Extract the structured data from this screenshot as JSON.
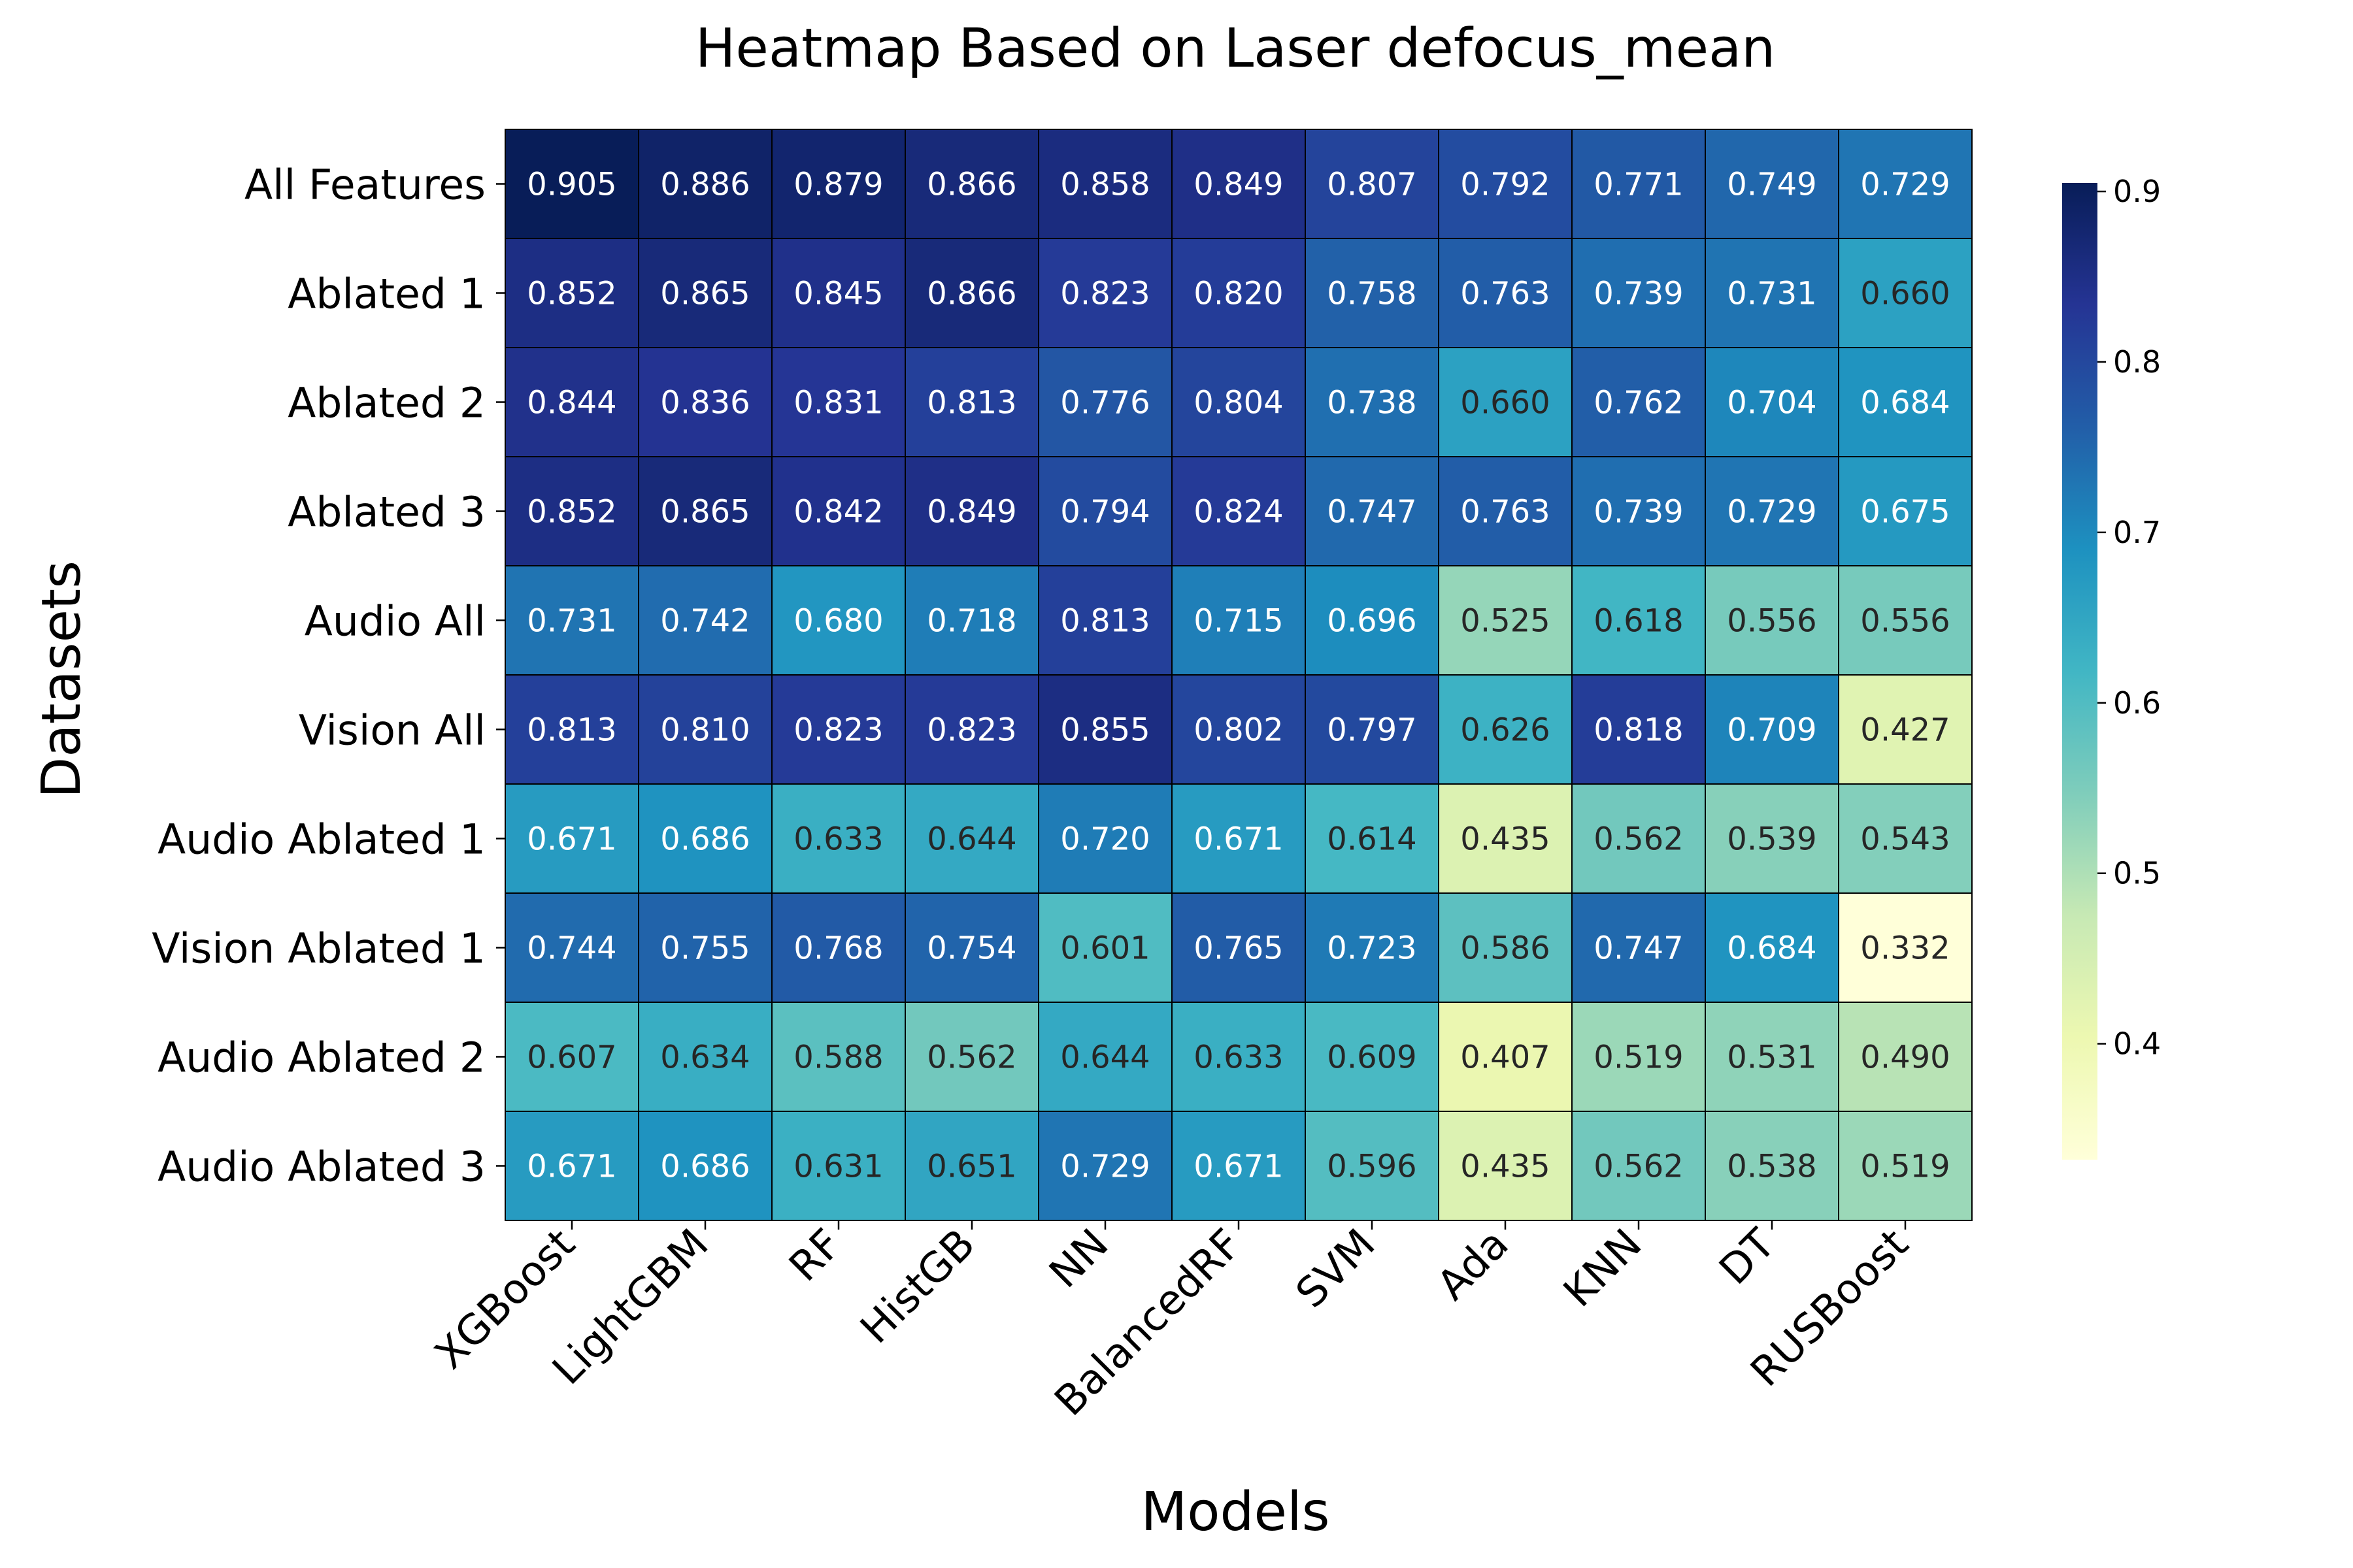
{
  "chart_data": {
    "type": "heatmap",
    "title": "Heatmap Based on Laser defocus_mean",
    "xlabel": "Models",
    "ylabel": "Datasets",
    "x_categories": [
      "XGBoost",
      "LightGBM",
      "RF",
      "HistGB",
      "NN",
      "BalancedRF",
      "SVM",
      "Ada",
      "KNN",
      "DT",
      "RUSBoost"
    ],
    "y_categories": [
      "All Features",
      "Ablated 1",
      "Ablated 2",
      "Ablated 3",
      "Audio All",
      "Vision All",
      "Audio Ablated 1",
      "Vision Ablated 1",
      "Audio Ablated 2",
      "Audio Ablated 3"
    ],
    "values": [
      [
        0.905,
        0.886,
        0.879,
        0.866,
        0.858,
        0.849,
        0.807,
        0.792,
        0.771,
        0.749,
        0.729
      ],
      [
        0.852,
        0.865,
        0.845,
        0.866,
        0.823,
        0.82,
        0.758,
        0.763,
        0.739,
        0.731,
        0.66
      ],
      [
        0.844,
        0.836,
        0.831,
        0.813,
        0.776,
        0.804,
        0.738,
        0.66,
        0.762,
        0.704,
        0.684
      ],
      [
        0.852,
        0.865,
        0.842,
        0.849,
        0.794,
        0.824,
        0.747,
        0.763,
        0.739,
        0.729,
        0.675
      ],
      [
        0.731,
        0.742,
        0.68,
        0.718,
        0.813,
        0.715,
        0.696,
        0.525,
        0.618,
        0.556,
        0.556
      ],
      [
        0.813,
        0.81,
        0.823,
        0.823,
        0.855,
        0.802,
        0.797,
        0.626,
        0.818,
        0.709,
        0.427
      ],
      [
        0.671,
        0.686,
        0.633,
        0.644,
        0.72,
        0.671,
        0.614,
        0.435,
        0.562,
        0.539,
        0.543
      ],
      [
        0.744,
        0.755,
        0.768,
        0.754,
        0.601,
        0.765,
        0.723,
        0.586,
        0.747,
        0.684,
        0.332
      ],
      [
        0.607,
        0.634,
        0.588,
        0.562,
        0.644,
        0.633,
        0.609,
        0.407,
        0.519,
        0.531,
        0.49
      ],
      [
        0.671,
        0.686,
        0.631,
        0.651,
        0.729,
        0.671,
        0.596,
        0.435,
        0.562,
        0.538,
        0.519
      ]
    ],
    "colorscale": "YlGnBu",
    "vmin": 0.332,
    "vmax": 0.905,
    "colorbar_ticks": [
      "0.4",
      "0.5",
      "0.6",
      "0.7",
      "0.8",
      "0.9"
    ],
    "colorbar_placement": "right",
    "cell_border_color": "#000000"
  }
}
